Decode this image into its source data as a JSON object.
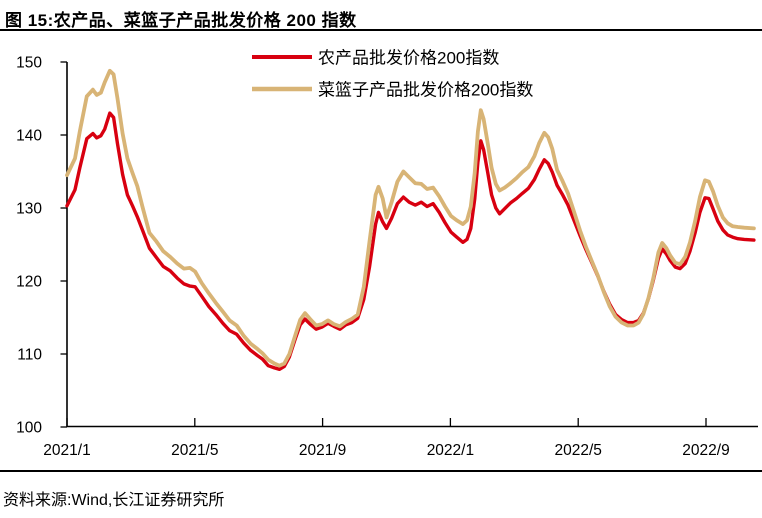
{
  "header": {
    "title": "图 15:农产品、菜篮子产品批发价格 200 指数"
  },
  "footer": {
    "source": "资料来源:Wind,长江证券研究所"
  },
  "colors": {
    "axis": "#000000",
    "series1": "#D80010",
    "series2": "#D8B476",
    "background": "#FFFFFF"
  },
  "chart_data": {
    "type": "line",
    "title": "农产品、菜篮子产品批发价格 200 指数",
    "xlabel": "",
    "ylabel": "",
    "ylim": [
      100,
      150
    ],
    "xlim": [
      0,
      21.6
    ],
    "x_unit": "months since 2021/1",
    "grid": false,
    "legend_position": "top-center",
    "y_ticks": [
      100,
      110,
      120,
      130,
      140,
      150
    ],
    "x_ticks": [
      {
        "pos": 0,
        "label": "2021/1"
      },
      {
        "pos": 4,
        "label": "2021/5"
      },
      {
        "pos": 8,
        "label": "2021/9"
      },
      {
        "pos": 12,
        "label": "2022/1"
      },
      {
        "pos": 16,
        "label": "2022/5"
      },
      {
        "pos": 20,
        "label": "2022/9"
      }
    ],
    "x": [
      0,
      0.25,
      0.4,
      0.62,
      0.81,
      0.93,
      1.06,
      1.18,
      1.34,
      1.46,
      1.58,
      1.74,
      1.89,
      2.05,
      2.2,
      2.36,
      2.58,
      2.8,
      3.01,
      3.23,
      3.45,
      3.66,
      3.85,
      4.01,
      4.22,
      4.44,
      4.66,
      4.88,
      5.09,
      5.31,
      5.53,
      5.75,
      5.96,
      6.12,
      6.3,
      6.49,
      6.65,
      6.8,
      6.96,
      7.14,
      7.3,
      7.45,
      7.61,
      7.8,
      7.98,
      8.17,
      8.35,
      8.54,
      8.73,
      8.91,
      9.1,
      9.29,
      9.47,
      9.66,
      9.75,
      9.88,
      10.0,
      10.16,
      10.34,
      10.53,
      10.71,
      10.9,
      11.09,
      11.27,
      11.46,
      11.65,
      11.83,
      12.02,
      12.2,
      12.39,
      12.52,
      12.64,
      12.76,
      12.86,
      12.95,
      13.04,
      13.17,
      13.29,
      13.42,
      13.54,
      13.7,
      13.88,
      14.07,
      14.25,
      14.44,
      14.63,
      14.78,
      14.94,
      15.06,
      15.19,
      15.34,
      15.5,
      15.68,
      15.87,
      16.06,
      16.24,
      16.43,
      16.61,
      16.8,
      16.99,
      17.17,
      17.36,
      17.55,
      17.73,
      17.89,
      18.04,
      18.2,
      18.35,
      18.51,
      18.63,
      18.76,
      18.88,
      19.04,
      19.19,
      19.35,
      19.5,
      19.66,
      19.81,
      19.97,
      20.09,
      20.22,
      20.37,
      20.53,
      20.68,
      20.84,
      21.0,
      21.2,
      21.5
    ],
    "series": [
      {
        "name": "农产品批发价格200指数",
        "color": "#D80010",
        "values": [
          130.3,
          132.5,
          135.5,
          139.5,
          140.2,
          139.6,
          139.9,
          140.8,
          143.0,
          142.4,
          138.8,
          134.6,
          131.8,
          130.3,
          128.8,
          127.0,
          124.5,
          123.2,
          122.0,
          121.4,
          120.4,
          119.6,
          119.3,
          119.2,
          117.9,
          116.5,
          115.4,
          114.2,
          113.2,
          112.7,
          111.5,
          110.5,
          109.8,
          109.3,
          108.4,
          108.1,
          107.9,
          108.3,
          109.6,
          112.0,
          114.0,
          114.8,
          114.1,
          113.4,
          113.7,
          114.2,
          113.8,
          113.4,
          114.0,
          114.3,
          114.9,
          117.5,
          122.0,
          127.8,
          129.4,
          128.1,
          127.2,
          128.6,
          130.6,
          131.5,
          130.8,
          130.4,
          130.8,
          130.2,
          130.6,
          129.4,
          128.0,
          126.7,
          126.0,
          125.3,
          125.7,
          127.2,
          131.2,
          136.3,
          139.2,
          138.0,
          134.8,
          131.8,
          130.0,
          129.2,
          129.9,
          130.7,
          131.3,
          132.0,
          132.7,
          133.9,
          135.3,
          136.6,
          136.1,
          134.9,
          133.1,
          131.9,
          130.4,
          128.3,
          126.2,
          124.3,
          122.5,
          120.7,
          118.6,
          116.8,
          115.4,
          114.7,
          114.3,
          114.3,
          114.6,
          115.6,
          117.6,
          120.1,
          123.1,
          124.4,
          123.7,
          122.8,
          121.9,
          121.7,
          122.4,
          124.1,
          126.6,
          129.4,
          131.4,
          131.3,
          129.9,
          128.2,
          127.0,
          126.3,
          126.0,
          125.8,
          125.7,
          125.6
        ]
      },
      {
        "name": "菜篮子产品批发价格200指数",
        "color": "#D8B476",
        "values": [
          134.5,
          136.8,
          140.5,
          145.3,
          146.2,
          145.5,
          145.8,
          147.2,
          148.8,
          148.3,
          145.0,
          140.2,
          136.8,
          134.8,
          133.0,
          130.2,
          126.6,
          125.4,
          124.1,
          123.3,
          122.4,
          121.7,
          121.8,
          121.3,
          119.7,
          118.3,
          117.0,
          115.8,
          114.6,
          113.9,
          112.5,
          111.4,
          110.7,
          110.1,
          109.2,
          108.7,
          108.4,
          108.7,
          110.0,
          112.5,
          114.7,
          115.6,
          114.8,
          113.9,
          114.1,
          114.6,
          114.1,
          113.8,
          114.4,
          114.8,
          115.4,
          119.2,
          125.5,
          131.8,
          132.9,
          131.3,
          128.7,
          130.8,
          133.6,
          135.0,
          134.2,
          133.4,
          133.3,
          132.6,
          132.8,
          131.6,
          130.2,
          128.9,
          128.3,
          127.8,
          128.3,
          130.2,
          134.8,
          140.5,
          143.4,
          142.2,
          138.8,
          135.5,
          133.3,
          132.4,
          132.8,
          133.4,
          134.1,
          134.9,
          135.6,
          137.1,
          138.9,
          140.3,
          139.7,
          138.1,
          135.2,
          133.8,
          132.0,
          129.5,
          126.9,
          124.7,
          122.7,
          120.8,
          118.5,
          116.5,
          115.1,
          114.3,
          113.9,
          113.9,
          114.3,
          115.5,
          117.7,
          120.4,
          123.9,
          125.2,
          124.5,
          123.5,
          122.5,
          122.3,
          123.3,
          125.3,
          128.2,
          131.5,
          133.8,
          133.6,
          132.3,
          130.3,
          128.7,
          127.9,
          127.5,
          127.4,
          127.3,
          127.2
        ]
      }
    ]
  }
}
